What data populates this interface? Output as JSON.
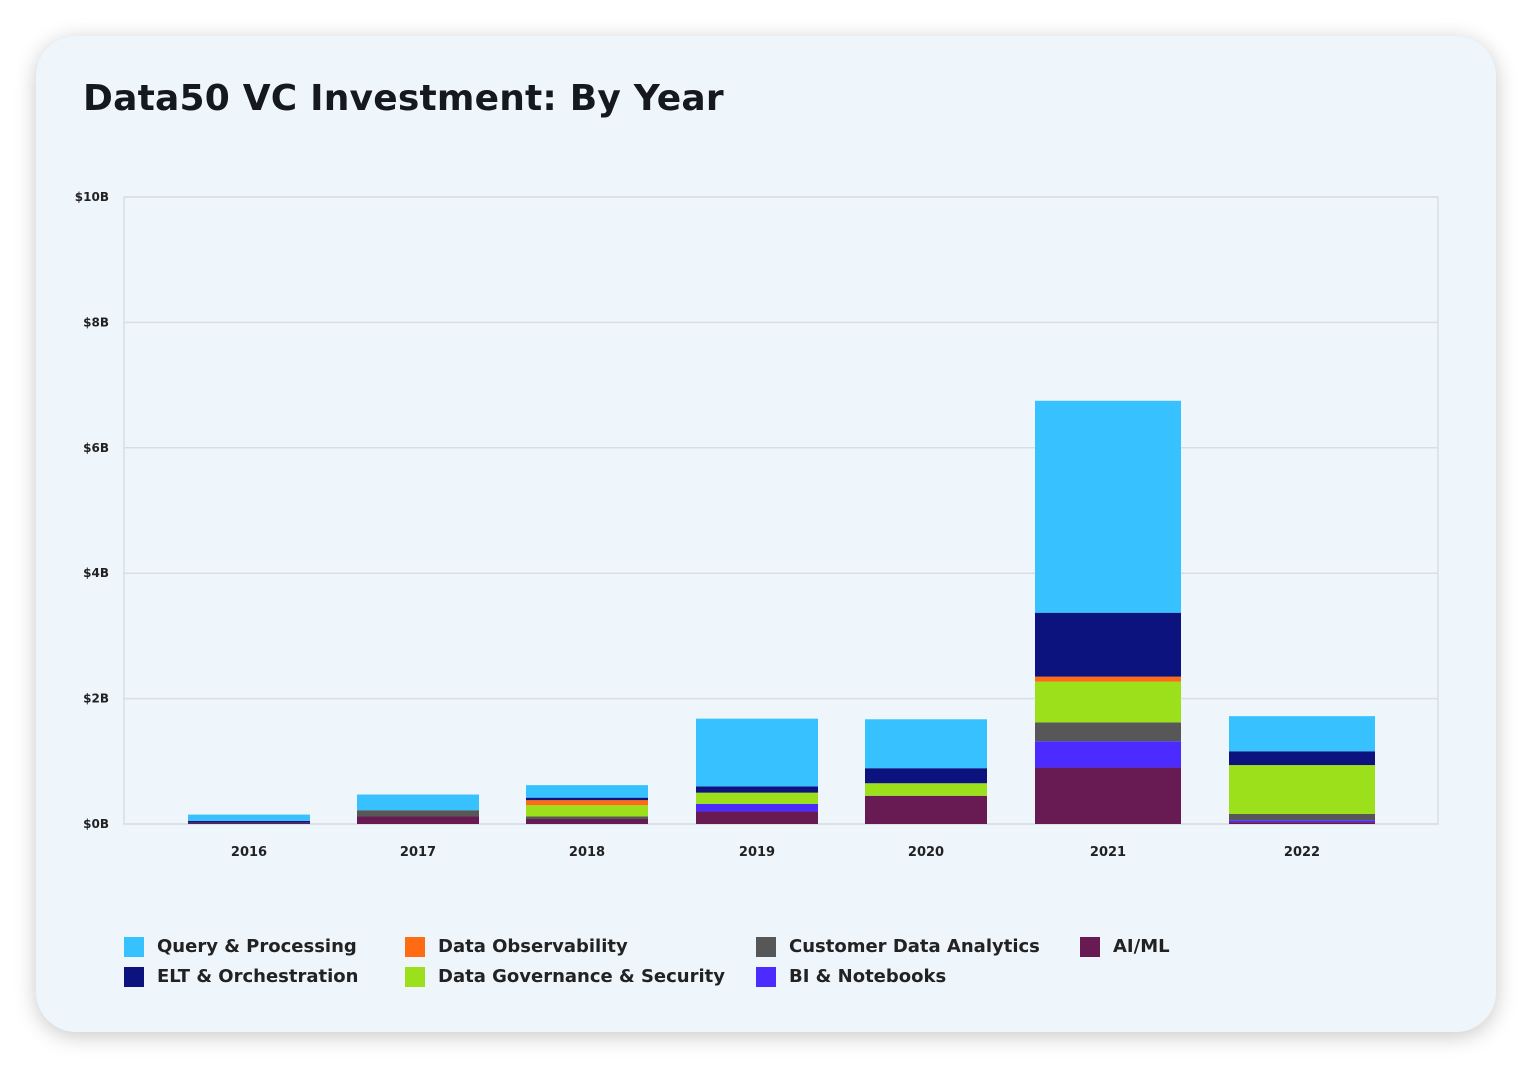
{
  "title": "Data50 VC Investment: By Year",
  "chart_data": {
    "type": "bar",
    "stacked": true,
    "categories": [
      "2016",
      "2017",
      "2018",
      "2019",
      "2020",
      "2021",
      "2022"
    ],
    "ylim": [
      0,
      10
    ],
    "yticks": [
      0,
      2,
      4,
      6,
      8,
      10
    ],
    "ytick_labels": [
      "$0B",
      "$2B",
      "$4B",
      "$6B",
      "$8B",
      "$10B"
    ],
    "grid": true,
    "legend_position": "bottom",
    "series": [
      {
        "name": "AI/ML",
        "color": "#681b53",
        "values": [
          0.02,
          0.12,
          0.08,
          0.2,
          0.45,
          0.9,
          0.03
        ]
      },
      {
        "name": "BI & Notebooks",
        "color": "#4b2bff",
        "values": [
          0.0,
          0.0,
          0.0,
          0.12,
          0.0,
          0.42,
          0.03
        ]
      },
      {
        "name": "Customer Data Analytics",
        "color": "#575757",
        "values": [
          0.0,
          0.1,
          0.04,
          0.0,
          0.0,
          0.3,
          0.1
        ]
      },
      {
        "name": "Data Governance & Security",
        "color": "#9be01b",
        "values": [
          0.0,
          0.0,
          0.18,
          0.18,
          0.2,
          0.65,
          0.78
        ]
      },
      {
        "name": "Data Observability",
        "color": "#ff6b12",
        "values": [
          0.0,
          0.0,
          0.08,
          0.0,
          0.0,
          0.08,
          0.0
        ]
      },
      {
        "name": "ELT & Orchestration",
        "color": "#0c137f",
        "values": [
          0.03,
          0.0,
          0.04,
          0.1,
          0.24,
          1.02,
          0.22
        ]
      },
      {
        "name": "Query & Processing",
        "color": "#38c1ff",
        "values": [
          0.1,
          0.25,
          0.2,
          1.08,
          0.78,
          3.38,
          0.56
        ]
      }
    ]
  },
  "legend": [
    {
      "label": "Query & Processing",
      "color": "#38c1ff"
    },
    {
      "label": "ELT & Orchestration",
      "color": "#0c137f"
    },
    {
      "label": "Data Observability",
      "color": "#ff6b12"
    },
    {
      "label": "Data Governance & Security",
      "color": "#9be01b"
    },
    {
      "label": "Customer Data Analytics",
      "color": "#575757"
    },
    {
      "label": "BI & Notebooks",
      "color": "#4b2bff"
    },
    {
      "label": "AI/ML",
      "color": "#681b53"
    }
  ]
}
